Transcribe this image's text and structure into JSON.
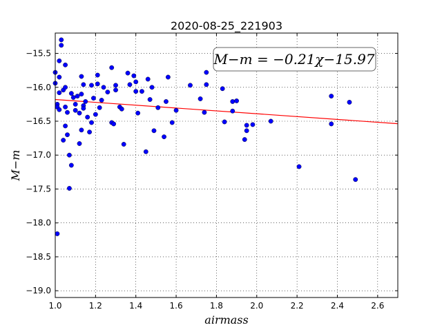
{
  "chart_data": {
    "type": "scatter",
    "title": "2020-08-25_221903",
    "xlabel": "airmass",
    "ylabel": "M−m",
    "xlim": [
      1.0,
      2.7
    ],
    "ylim": [
      -19.1,
      -15.2
    ],
    "x_ticks": [
      1.0,
      1.2,
      1.4,
      1.6,
      1.8,
      2.0,
      2.2,
      2.4,
      2.6
    ],
    "x_tick_labels": [
      "1.0",
      "1.2",
      "1.4",
      "1.6",
      "1.8",
      "2.0",
      "2.2",
      "2.4",
      "2.6"
    ],
    "y_ticks": [
      -15.5,
      -16.0,
      -16.5,
      -17.0,
      -17.5,
      -18.0,
      -18.5,
      -19.0
    ],
    "y_tick_labels": [
      "−15.5",
      "−16.0",
      "−16.5",
      "−17.0",
      "−17.5",
      "−18.0",
      "−18.5",
      "−19.0"
    ],
    "grid": true,
    "annotation": "M−m = −0.21χ−15.97",
    "fit": {
      "slope": -0.21,
      "intercept": -15.97,
      "color": "#ff0000"
    },
    "point_color": "#0000ff",
    "points": [
      [
        1.0,
        -15.94
      ],
      [
        1.0,
        -15.78
      ],
      [
        1.01,
        -16.25
      ],
      [
        1.01,
        -18.16
      ],
      [
        1.01,
        -16.29
      ],
      [
        1.02,
        -15.85
      ],
      [
        1.02,
        -16.08
      ],
      [
        1.02,
        -16.33
      ],
      [
        1.02,
        -15.61
      ],
      [
        1.03,
        -15.3
      ],
      [
        1.03,
        -15.38
      ],
      [
        1.04,
        -16.04
      ],
      [
        1.04,
        -16.78
      ],
      [
        1.05,
        -16.57
      ],
      [
        1.05,
        -15.67
      ],
      [
        1.05,
        -16.0
      ],
      [
        1.05,
        -16.29
      ],
      [
        1.06,
        -16.7
      ],
      [
        1.06,
        -16.37
      ],
      [
        1.07,
        -17.49
      ],
      [
        1.07,
        -17.0
      ],
      [
        1.08,
        -16.09
      ],
      [
        1.08,
        -17.15
      ],
      [
        1.09,
        -16.15
      ],
      [
        1.1,
        -16.25
      ],
      [
        1.1,
        -16.34
      ],
      [
        1.11,
        -16.13
      ],
      [
        1.12,
        -16.83
      ],
      [
        1.12,
        -16.38
      ],
      [
        1.13,
        -15.84
      ],
      [
        1.13,
        -16.1
      ],
      [
        1.13,
        -16.63
      ],
      [
        1.14,
        -16.27
      ],
      [
        1.14,
        -16.31
      ],
      [
        1.14,
        -15.96
      ],
      [
        1.15,
        -16.21
      ],
      [
        1.16,
        -16.44
      ],
      [
        1.17,
        -16.66
      ],
      [
        1.18,
        -15.97
      ],
      [
        1.18,
        -16.52
      ],
      [
        1.19,
        -16.16
      ],
      [
        1.2,
        -16.4
      ],
      [
        1.21,
        -15.82
      ],
      [
        1.21,
        -15.95
      ],
      [
        1.22,
        -16.3
      ],
      [
        1.23,
        -16.19
      ],
      [
        1.24,
        -16.0
      ],
      [
        1.26,
        -16.07
      ],
      [
        1.28,
        -15.71
      ],
      [
        1.28,
        -16.52
      ],
      [
        1.29,
        -16.54
      ],
      [
        1.3,
        -16.04
      ],
      [
        1.3,
        -15.97
      ],
      [
        1.32,
        -16.29
      ],
      [
        1.33,
        -16.32
      ],
      [
        1.34,
        -16.84
      ],
      [
        1.36,
        -15.79
      ],
      [
        1.37,
        -15.96
      ],
      [
        1.39,
        -15.83
      ],
      [
        1.4,
        -15.92
      ],
      [
        1.4,
        -16.06
      ],
      [
        1.41,
        -16.38
      ],
      [
        1.43,
        -16.06
      ],
      [
        1.45,
        -16.95
      ],
      [
        1.46,
        -15.88
      ],
      [
        1.47,
        -16.18
      ],
      [
        1.48,
        -16.0
      ],
      [
        1.49,
        -16.64
      ],
      [
        1.51,
        -16.3
      ],
      [
        1.54,
        -16.73
      ],
      [
        1.55,
        -16.21
      ],
      [
        1.56,
        -15.85
      ],
      [
        1.58,
        -16.52
      ],
      [
        1.6,
        -16.34
      ],
      [
        1.67,
        -15.97
      ],
      [
        1.72,
        -16.17
      ],
      [
        1.74,
        -16.37
      ],
      [
        1.75,
        -15.96
      ],
      [
        1.75,
        -15.78
      ],
      [
        1.83,
        -16.02
      ],
      [
        1.84,
        -16.51
      ],
      [
        1.88,
        -16.35
      ],
      [
        1.88,
        -16.21
      ],
      [
        1.9,
        -16.2
      ],
      [
        1.94,
        -16.77
      ],
      [
        1.95,
        -16.64
      ],
      [
        1.95,
        -16.56
      ],
      [
        1.98,
        -16.55
      ],
      [
        2.07,
        -16.5
      ],
      [
        2.21,
        -17.17
      ],
      [
        2.37,
        -16.13
      ],
      [
        2.37,
        -16.54
      ],
      [
        2.46,
        -16.22
      ],
      [
        2.49,
        -17.36
      ]
    ]
  }
}
